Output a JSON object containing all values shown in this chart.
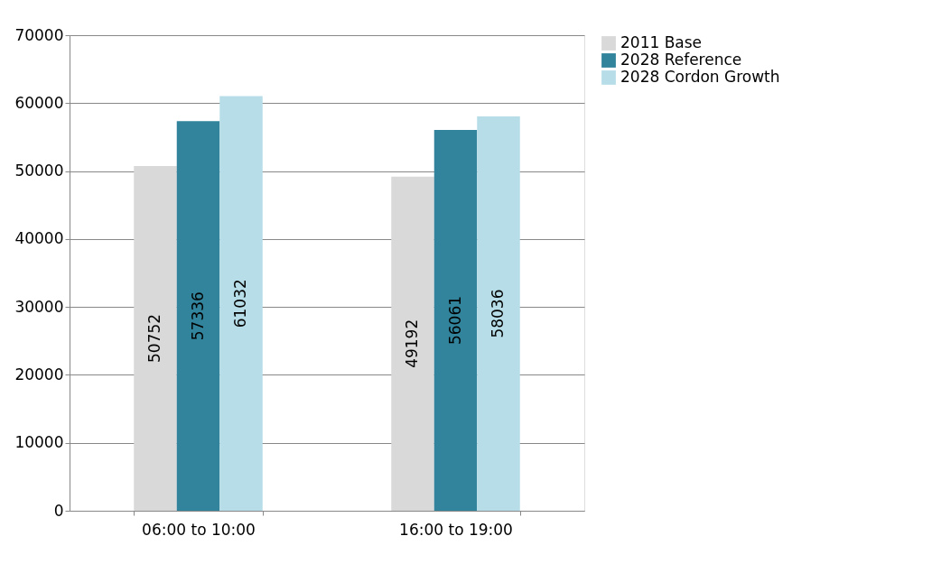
{
  "chart_data": {
    "type": "bar",
    "categories": [
      "06:00 to 10:00",
      "16:00 to 19:00"
    ],
    "series": [
      {
        "name": "2011 Base",
        "color": "#d9d9d9",
        "values": [
          50752,
          49192
        ]
      },
      {
        "name": "2028 Reference",
        "color": "#31849b",
        "values": [
          57336,
          56061
        ]
      },
      {
        "name": "2028 Cordon Growth",
        "color": "#b7dee8",
        "values": [
          61032,
          58036
        ]
      }
    ],
    "ylim": [
      0,
      70000
    ],
    "yticks": [
      0,
      10000,
      20000,
      30000,
      40000,
      50000,
      60000,
      70000
    ],
    "grid": "y",
    "legend": "right",
    "data_labels": true
  }
}
